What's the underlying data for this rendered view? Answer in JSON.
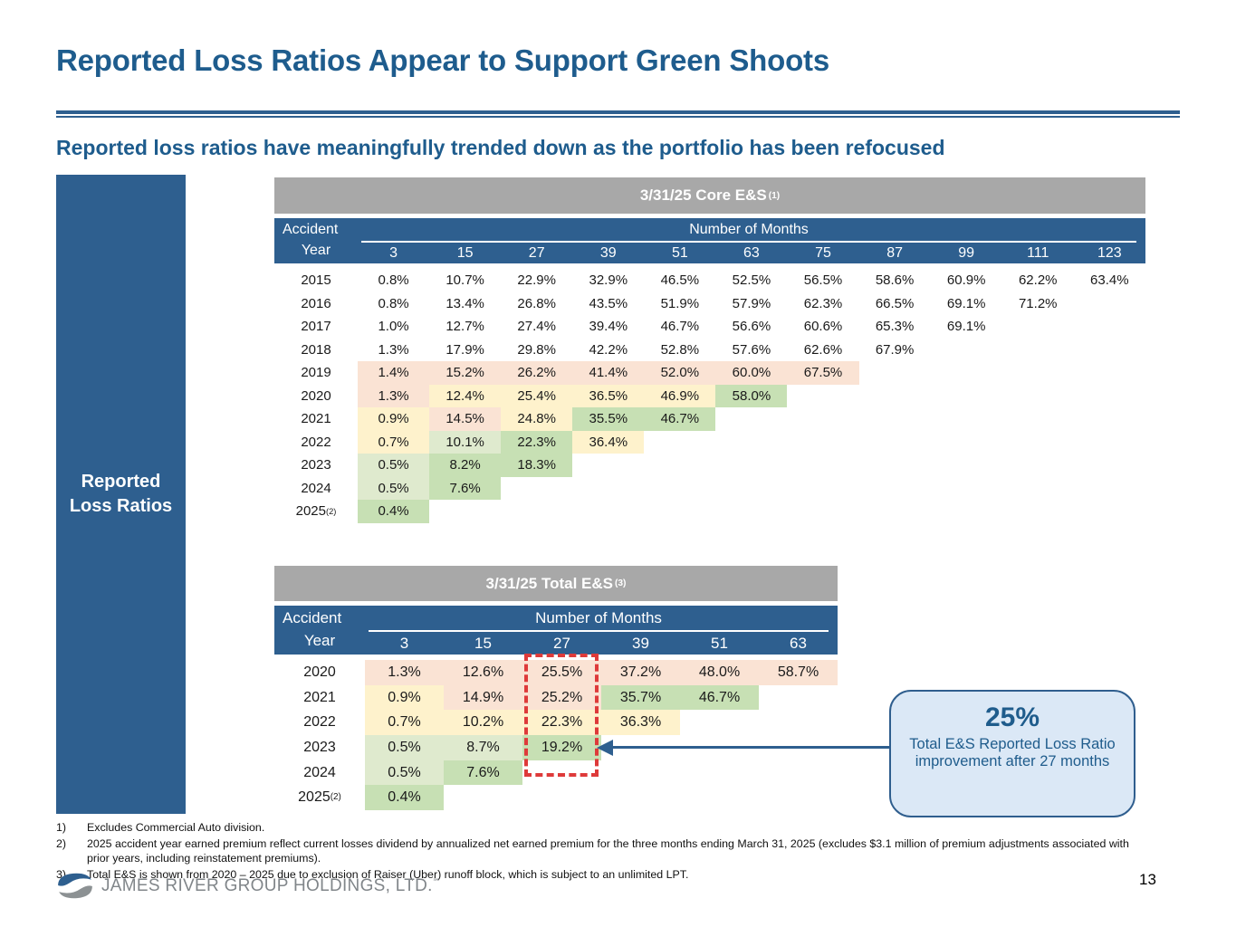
{
  "slide": {
    "title": "Reported Loss Ratios Appear to Support Green Shoots",
    "subtitle": "Reported loss ratios have meaningfully trended down as the portfolio has been refocused",
    "sidebar_line1": "Reported",
    "sidebar_line2": "Loss Ratios",
    "page_number": "13",
    "logo_text": "JAMES RIVER GROUP HOLDINGS, LTD.",
    "logo_mark": "℠"
  },
  "colors": {
    "accent_blue": "#2E5F8F",
    "title_blue": "#1E5C8D",
    "header_gray": "#A8A8A8",
    "callout_fill": "#DBE8F6",
    "callout_border": "#2F5E8E",
    "highlight_red": "#DE3A3A",
    "cell": {
      "pink": "#FAE3D4",
      "yellow": "#FEF2CC",
      "lightgreen": "#DFEACE",
      "green": "#C7E0B4"
    }
  },
  "tables": [
    {
      "title": "3/31/25 Core E&S",
      "title_sup": "(1)",
      "row_header_line1": "Accident",
      "row_header_line2": "Year",
      "col_group_label": "Number of Months",
      "columns": [
        "3",
        "15",
        "27",
        "39",
        "51",
        "63",
        "75",
        "87",
        "99",
        "111",
        "123"
      ],
      "rows": [
        {
          "year": "2015",
          "year_sup": "",
          "values": [
            "0.8%",
            "10.7%",
            "22.9%",
            "32.9%",
            "46.5%",
            "52.5%",
            "56.5%",
            "58.6%",
            "60.9%",
            "62.2%",
            "63.4%"
          ],
          "fills": [
            "",
            "",
            "",
            "",
            "",
            "",
            "",
            "",
            "",
            "",
            ""
          ]
        },
        {
          "year": "2016",
          "year_sup": "",
          "values": [
            "0.8%",
            "13.4%",
            "26.8%",
            "43.5%",
            "51.9%",
            "57.9%",
            "62.3%",
            "66.5%",
            "69.1%",
            "71.2%"
          ],
          "fills": [
            "",
            "",
            "",
            "",
            "",
            "",
            "",
            "",
            "",
            ""
          ]
        },
        {
          "year": "2017",
          "year_sup": "",
          "values": [
            "1.0%",
            "12.7%",
            "27.4%",
            "39.4%",
            "46.7%",
            "56.6%",
            "60.6%",
            "65.3%",
            "69.1%"
          ],
          "fills": [
            "",
            "",
            "",
            "",
            "",
            "",
            "",
            "",
            ""
          ]
        },
        {
          "year": "2018",
          "year_sup": "",
          "values": [
            "1.3%",
            "17.9%",
            "29.8%",
            "42.2%",
            "52.8%",
            "57.6%",
            "62.6%",
            "67.9%"
          ],
          "fills": [
            "",
            "",
            "",
            "",
            "",
            "",
            "",
            ""
          ]
        },
        {
          "year": "2019",
          "year_sup": "",
          "values": [
            "1.4%",
            "15.2%",
            "26.2%",
            "41.4%",
            "52.0%",
            "60.0%",
            "67.5%"
          ],
          "fills": [
            "pink",
            "pink",
            "pink",
            "pink",
            "pink",
            "pink",
            "pink"
          ]
        },
        {
          "year": "2020",
          "year_sup": "",
          "values": [
            "1.3%",
            "12.4%",
            "25.4%",
            "36.5%",
            "46.9%",
            "58.0%"
          ],
          "fills": [
            "pink",
            "yellow",
            "yellow",
            "yellow",
            "yellow",
            "green"
          ]
        },
        {
          "year": "2021",
          "year_sup": "",
          "values": [
            "0.9%",
            "14.5%",
            "24.8%",
            "35.5%",
            "46.7%"
          ],
          "fills": [
            "yellow",
            "pink",
            "yellow",
            "green",
            "green"
          ]
        },
        {
          "year": "2022",
          "year_sup": "",
          "values": [
            "0.7%",
            "10.1%",
            "22.3%",
            "36.4%"
          ],
          "fills": [
            "yellow",
            "lightgreen",
            "green",
            "yellow"
          ]
        },
        {
          "year": "2023",
          "year_sup": "",
          "values": [
            "0.5%",
            "8.2%",
            "18.3%"
          ],
          "fills": [
            "lightgreen",
            "green",
            "green"
          ]
        },
        {
          "year": "2024",
          "year_sup": "",
          "values": [
            "0.5%",
            "7.6%"
          ],
          "fills": [
            "lightgreen",
            "green"
          ]
        },
        {
          "year": "2025",
          "year_sup": "(2)",
          "values": [
            "0.4%"
          ],
          "fills": [
            "green"
          ]
        }
      ]
    },
    {
      "title": "3/31/25 Total E&S",
      "title_sup": "(3)",
      "row_header_line1": "Accident",
      "row_header_line2": "Year",
      "col_group_label": "Number of Months",
      "columns": [
        "3",
        "15",
        "27",
        "39",
        "51",
        "63"
      ],
      "rows": [
        {
          "year": "2020",
          "year_sup": "",
          "values": [
            "1.3%",
            "12.6%",
            "25.5%",
            "37.2%",
            "48.0%",
            "58.7%"
          ],
          "fills": [
            "pink",
            "pink",
            "pink",
            "pink",
            "pink",
            "pink"
          ]
        },
        {
          "year": "2021",
          "year_sup": "",
          "values": [
            "0.9%",
            "14.9%",
            "25.2%",
            "35.7%",
            "46.7%"
          ],
          "fills": [
            "yellow",
            "pink",
            "pink",
            "green",
            "green"
          ]
        },
        {
          "year": "2022",
          "year_sup": "",
          "values": [
            "0.7%",
            "10.2%",
            "22.3%",
            "36.3%"
          ],
          "fills": [
            "yellow",
            "yellow",
            "yellow",
            "yellow"
          ]
        },
        {
          "year": "2023",
          "year_sup": "",
          "values": [
            "0.5%",
            "8.7%",
            "19.2%"
          ],
          "fills": [
            "lightgreen",
            "lightgreen",
            "green"
          ]
        },
        {
          "year": "2024",
          "year_sup": "",
          "values": [
            "0.5%",
            "7.6%"
          ],
          "fills": [
            "lightgreen",
            "green"
          ]
        },
        {
          "year": "2025",
          "year_sup": "(2)",
          "values": [
            "0.4%"
          ],
          "fills": [
            "green"
          ]
        }
      ]
    }
  ],
  "callout": {
    "headline": "25%",
    "body": "Total E&S Reported Loss Ratio improvement after 27 months"
  },
  "footnotes": [
    {
      "num": "1)",
      "text": "Excludes Commercial Auto division."
    },
    {
      "num": "2)",
      "text": "2025 accident year earned premium reflect current losses dividend by annualized net earned premium for the three months ending March 31, 2025 (excludes $3.1 million of premium adjustments associated with prior years, including reinstatement premiums)."
    },
    {
      "num": "3)",
      "text": "Total E&S is shown from 2020 – 2025 due to exclusion of Raiser (Uber) runoff block, which is subject to an unlimited LPT."
    }
  ]
}
